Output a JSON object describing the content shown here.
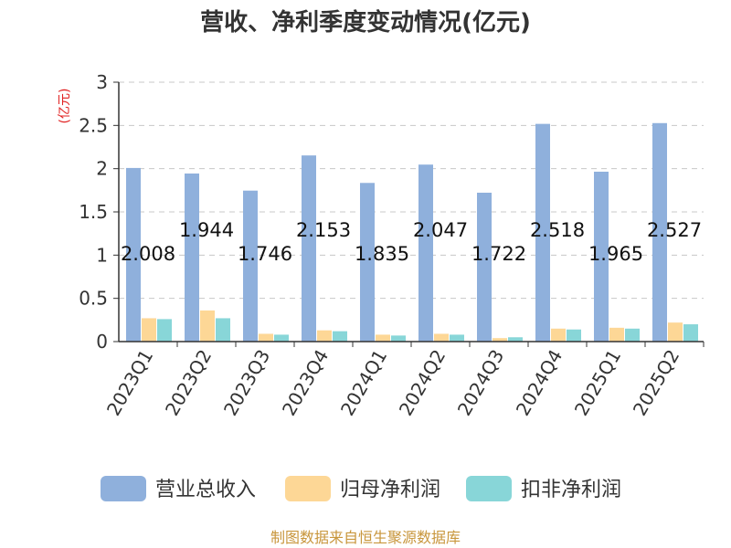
{
  "chart_data": {
    "type": "bar",
    "title": "营收、净利季度变动情况(亿元)",
    "unit_label": "(亿元)",
    "categories": [
      "2023Q1",
      "2023Q2",
      "2023Q3",
      "2023Q4",
      "2024Q1",
      "2024Q2",
      "2024Q3",
      "2024Q4",
      "2025Q1",
      "2025Q2"
    ],
    "series": [
      {
        "name": "营业总收入",
        "color": "#8fb0dc",
        "values": [
          2.008,
          1.944,
          1.746,
          2.153,
          1.835,
          2.047,
          1.722,
          2.518,
          1.965,
          2.527
        ]
      },
      {
        "name": "归母净利润",
        "color": "#fdd796",
        "values": [
          0.27,
          0.36,
          0.09,
          0.13,
          0.08,
          0.09,
          0.04,
          0.15,
          0.16,
          0.22
        ]
      },
      {
        "name": "扣非净利润",
        "color": "#88d6d8",
        "values": [
          0.26,
          0.27,
          0.08,
          0.12,
          0.07,
          0.08,
          0.05,
          0.14,
          0.15,
          0.2
        ]
      }
    ],
    "data_labels": [
      "2.008",
      "1.944",
      "1.746",
      "2.153",
      "1.835",
      "2.047",
      "1.722",
      "2.518",
      "1.965",
      "2.527"
    ],
    "yticks": [
      "0",
      "0.5",
      "1",
      "1.5",
      "2",
      "2.5",
      "3"
    ],
    "ylim": [
      0,
      3
    ],
    "grid": true,
    "legend_position": "bottom"
  },
  "source_text": "制图数据来自恒生聚源数据库"
}
